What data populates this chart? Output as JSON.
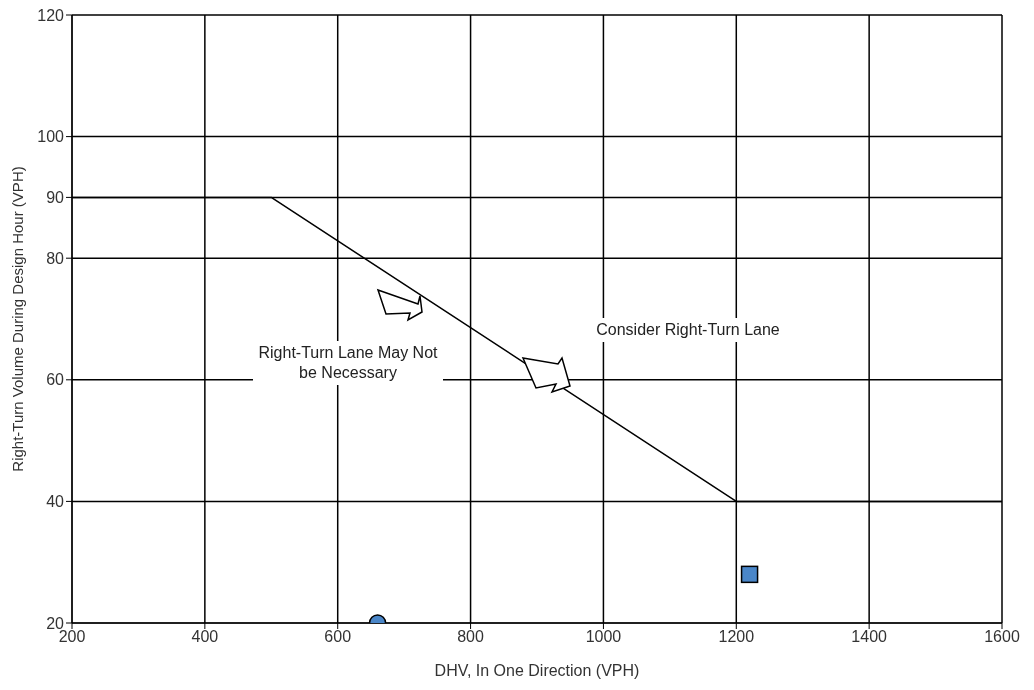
{
  "chart_data": {
    "type": "line",
    "xlabel": "DHV, In One Direction (VPH)",
    "ylabel": "Right-Turn Volume During Design Hour (VPH)",
    "xlim": [
      200,
      1600
    ],
    "xticks": [
      200,
      400,
      600,
      800,
      1000,
      1200,
      1400,
      1600
    ],
    "ylim": [
      20,
      120
    ],
    "yticks": [
      20,
      40,
      60,
      80,
      90,
      100,
      120
    ],
    "grid": true,
    "series": [
      {
        "color": "#000000",
        "x": [
          200,
          500,
          1200,
          1600
        ],
        "values": [
          90,
          90,
          40,
          40
        ],
        "marker": "none",
        "line_style": "solid"
      },
      {
        "type": "scatter",
        "color": "#4a86c8",
        "x": [
          660
        ],
        "values": [
          20
        ],
        "marker": "circle"
      },
      {
        "type": "scatter",
        "color": "#4a86c8",
        "x": [
          1220
        ],
        "values": [
          28
        ],
        "marker": "square"
      }
    ],
    "annotations": [
      "Right-Turn Lane May Not be Necessary",
      "Consider Right-Turn Lane"
    ]
  }
}
